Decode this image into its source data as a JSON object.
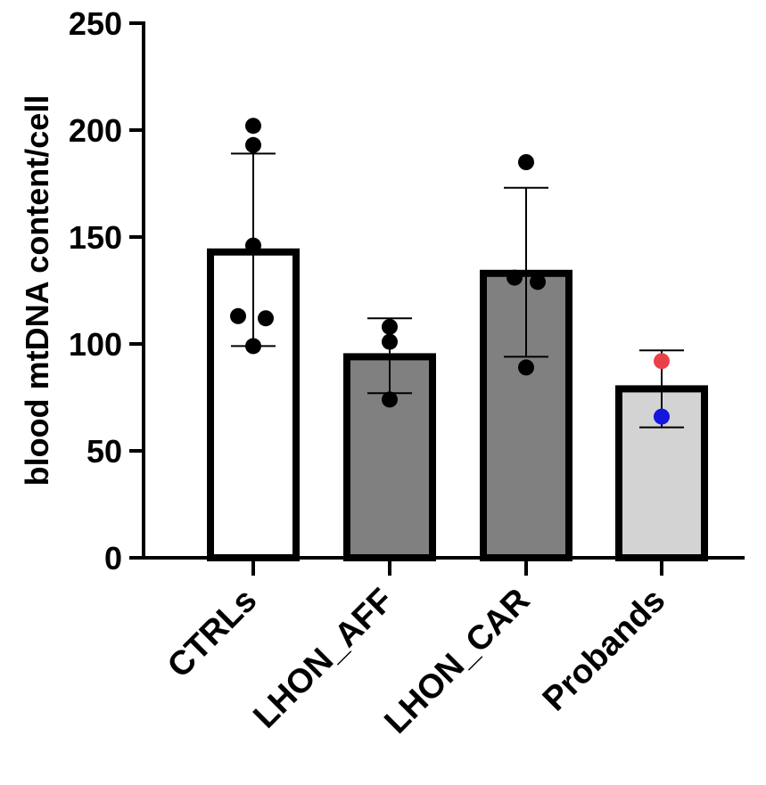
{
  "chart_data": {
    "type": "bar",
    "title": "",
    "xlabel": "",
    "ylabel": "blood mtDNA content/cell",
    "ylim": [
      0,
      250
    ],
    "yticks": [
      0,
      50,
      100,
      150,
      200,
      250
    ],
    "grid": false,
    "categories": [
      "CTRLs",
      "LHON_AFF",
      "LHON_CAR",
      "Probands"
    ],
    "bars": [
      {
        "category": "CTRLs",
        "mean": 143,
        "sd_low": 99,
        "sd_high": 189,
        "fill": "#ffffff",
        "points": [
          {
            "value": 202,
            "color": "#000000"
          },
          {
            "value": 193,
            "color": "#000000"
          },
          {
            "value": 146,
            "color": "#000000"
          },
          {
            "value": 113,
            "color": "#000000"
          },
          {
            "value": 112,
            "color": "#000000"
          },
          {
            "value": 99,
            "color": "#000000"
          }
        ]
      },
      {
        "category": "LHON_AFF",
        "mean": 94,
        "sd_low": 77,
        "sd_high": 112,
        "fill": "#808080",
        "points": [
          {
            "value": 108,
            "color": "#000000"
          },
          {
            "value": 101,
            "color": "#000000"
          },
          {
            "value": 74,
            "color": "#000000"
          }
        ]
      },
      {
        "category": "LHON_CAR",
        "mean": 133,
        "sd_low": 94,
        "sd_high": 173,
        "fill": "#808080",
        "points": [
          {
            "value": 185,
            "color": "#000000"
          },
          {
            "value": 131,
            "color": "#000000"
          },
          {
            "value": 129,
            "color": "#000000"
          },
          {
            "value": 89,
            "color": "#000000"
          }
        ]
      },
      {
        "category": "Probands",
        "mean": 79,
        "sd_low": 61,
        "sd_high": 97,
        "fill": "#d3d3d3",
        "points": [
          {
            "value": 92,
            "color": "#e8414a"
          },
          {
            "value": 66,
            "color": "#1515e0"
          }
        ]
      }
    ]
  }
}
